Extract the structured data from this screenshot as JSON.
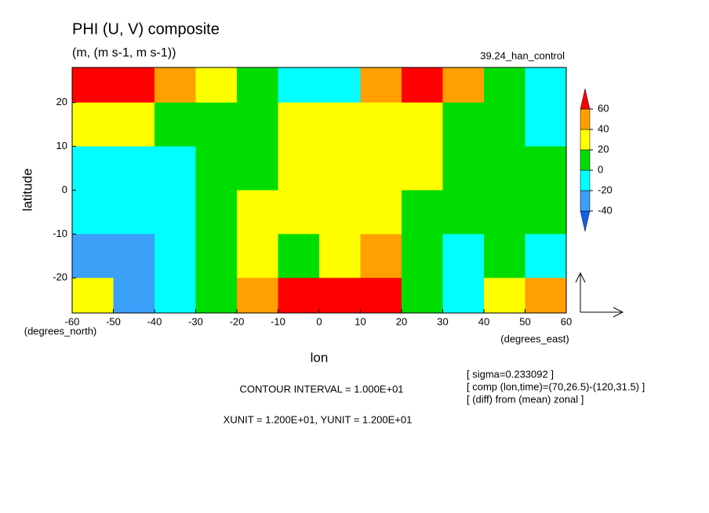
{
  "chart_data": {
    "type": "contour",
    "title": "PHI (U, V) composite",
    "subtitle": "(m, (m s-1, m s-1))",
    "run_label": "39.24_han_control",
    "x_label": "lon",
    "y_label": "latitude",
    "x_units": "(degrees_east)",
    "y_units": "(degrees_north)",
    "xlim": [
      -60,
      60
    ],
    "ylim": [
      -28,
      28
    ],
    "xticks": [
      -60,
      -50,
      -40,
      -30,
      -20,
      -10,
      0,
      10,
      20,
      30,
      40,
      50,
      60
    ],
    "yticks": [
      -20,
      -10,
      0,
      10,
      20
    ],
    "x": [
      -55,
      -45,
      -35,
      -25,
      -15,
      -5,
      5,
      15,
      25,
      35,
      45,
      55
    ],
    "y": [
      25,
      15,
      5,
      -5,
      -15,
      -25
    ],
    "z": [
      [
        65,
        65,
        50,
        30,
        10,
        -10,
        -10,
        50,
        65,
        50,
        10,
        -10
      ],
      [
        30,
        30,
        10,
        10,
        10,
        30,
        30,
        30,
        30,
        10,
        10,
        -10
      ],
      [
        -10,
        -10,
        -10,
        10,
        10,
        30,
        30,
        30,
        30,
        10,
        10,
        10
      ],
      [
        -10,
        -10,
        -10,
        10,
        30,
        30,
        30,
        30,
        10,
        10,
        10,
        10
      ],
      [
        -30,
        -30,
        -10,
        10,
        30,
        10,
        30,
        50,
        10,
        -10,
        10,
        -10
      ],
      [
        30,
        -30,
        -10,
        10,
        50,
        65,
        65,
        65,
        10,
        -10,
        30,
        50
      ]
    ],
    "levels": [
      -40,
      -20,
      0,
      20,
      40,
      60
    ],
    "colors": [
      "#1060e8",
      "#3aa0f8",
      "#00ffff",
      "#00dd00",
      "#ffff00",
      "#ffa000",
      "#ff0000"
    ],
    "notes": [
      "[ sigma=0.233092 ]",
      "[ comp (lon,time)=(70,26.5)-(120,31.5) ]",
      "[ (diff) from (mean) zonal ]"
    ],
    "contour_interval": "CONTOUR INTERVAL = 1.000E+01",
    "units_note": "XUNIT = 1.200E+01, YUNIT = 1.200E+01"
  }
}
